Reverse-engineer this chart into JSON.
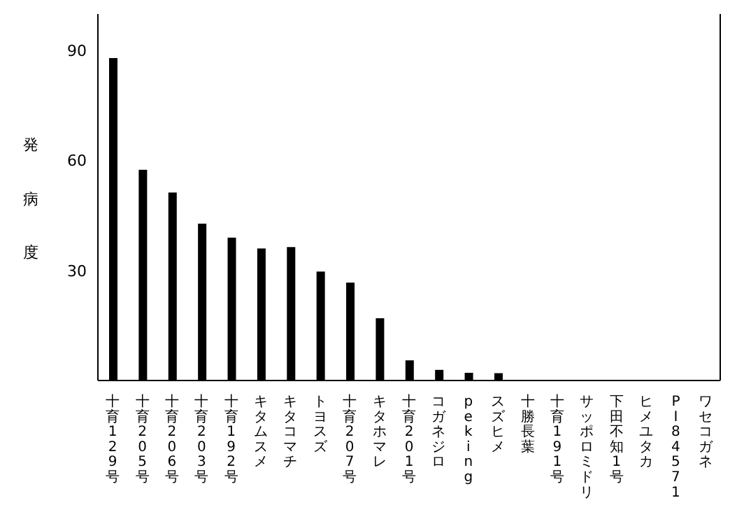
{
  "chart_data": {
    "type": "bar",
    "ylabel": "発病度",
    "categories": [
      "十育129号",
      "十育205号",
      "十育206号",
      "十育203号",
      "十育192号",
      "キタムスメ",
      "キタコマチ",
      "トヨスズ",
      "十育207号",
      "キタホマレ",
      "十育201号",
      "コガネジロ",
      "peking",
      "スズヒメ",
      "十勝長葉",
      "十育191号",
      "サッポロミドリ",
      "下田不知1号",
      "ヒメユタカ",
      "PI84571",
      "ワセコガネ"
    ],
    "values": [
      88,
      57.5,
      51.3,
      42.8,
      39,
      36,
      36.4,
      29.7,
      26.7,
      17,
      5.5,
      2.9,
      2.1,
      2,
      0,
      0,
      0,
      0,
      0,
      0,
      0
    ],
    "color": "#000000",
    "ylim": [
      0,
      100
    ],
    "yticks": [
      30,
      60,
      90
    ]
  }
}
